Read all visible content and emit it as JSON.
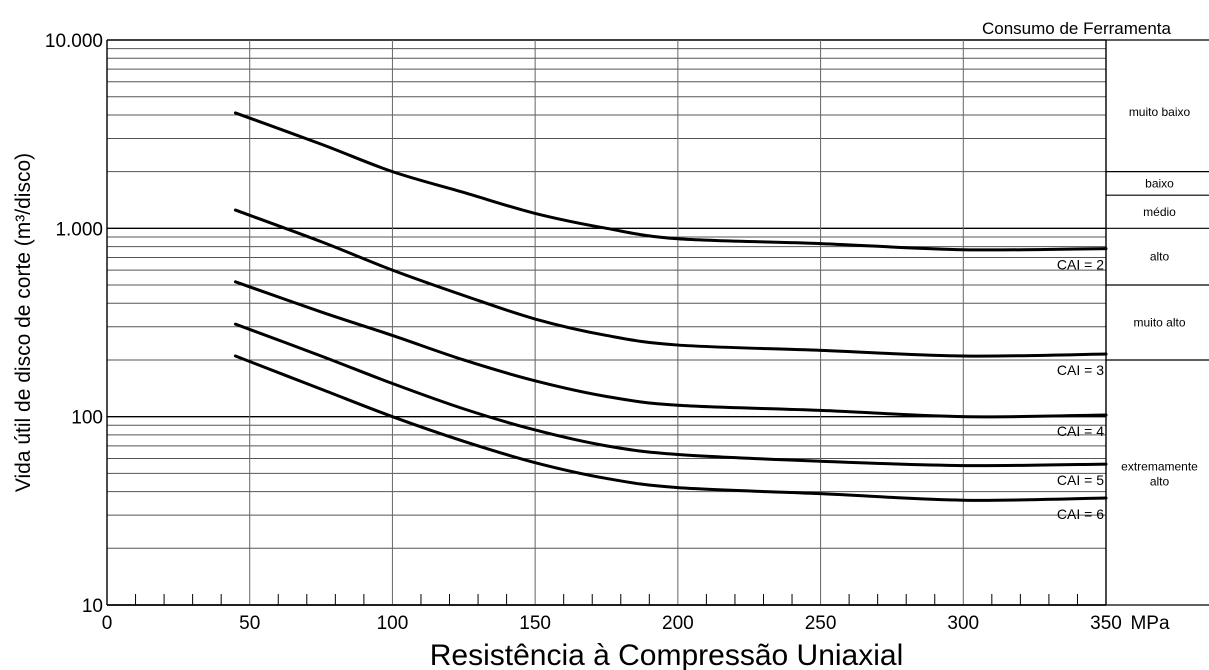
{
  "chart_data": {
    "type": "line",
    "title": "",
    "xlabel": "Resistência à Compressão Uniaxial",
    "x_unit": "MPa",
    "ylabel": "Vida útil de disco de corte (m³/disco)",
    "xlim": [
      0,
      350
    ],
    "ylim": [
      10,
      10000
    ],
    "y_scale": "log",
    "grid": true,
    "x_ticks": [
      0,
      50,
      100,
      150,
      200,
      250,
      300,
      350
    ],
    "x_tick_labels": [
      "0",
      "50",
      "100",
      "150",
      "200",
      "250",
      "300",
      "350"
    ],
    "y_ticks": [
      10,
      100,
      1000,
      10000
    ],
    "y_tick_labels": [
      "10",
      "100",
      "1.000",
      "10.000"
    ],
    "series": [
      {
        "name": "CAI = 2",
        "x": [
          45,
          75,
          100,
          125,
          150,
          175,
          200,
          250,
          300,
          350
        ],
        "values": [
          4100,
          2800,
          2000,
          1550,
          1200,
          1000,
          880,
          830,
          770,
          780
        ]
      },
      {
        "name": "CAI = 3",
        "x": [
          45,
          75,
          100,
          125,
          150,
          175,
          200,
          250,
          300,
          350
        ],
        "values": [
          1250,
          850,
          600,
          440,
          330,
          270,
          240,
          225,
          210,
          215
        ]
      },
      {
        "name": "CAI = 4",
        "x": [
          45,
          75,
          100,
          125,
          150,
          175,
          200,
          250,
          300,
          350
        ],
        "values": [
          520,
          360,
          270,
          200,
          155,
          128,
          115,
          108,
          100,
          102
        ]
      },
      {
        "name": "CAI = 5",
        "x": [
          45,
          75,
          100,
          125,
          150,
          175,
          200,
          250,
          300,
          350
        ],
        "values": [
          310,
          210,
          150,
          110,
          85,
          70,
          63,
          58,
          55,
          56
        ]
      },
      {
        "name": "CAI = 6",
        "x": [
          45,
          75,
          100,
          125,
          150,
          175,
          200,
          250,
          300,
          350
        ],
        "values": [
          210,
          140,
          100,
          74,
          57,
          47,
          42,
          39,
          36,
          37
        ]
      }
    ],
    "side_panel": {
      "title": "Consumo de Ferramenta",
      "zones": [
        {
          "label": "muito baixo",
          "y_min": 2000,
          "y_max": 10000
        },
        {
          "label": "baixo",
          "y_min": 1500,
          "y_max": 2000
        },
        {
          "label": "médio",
          "y_min": 1000,
          "y_max": 1500
        },
        {
          "label": "alto",
          "y_min": 500,
          "y_max": 1000
        },
        {
          "label": "muito alto",
          "y_min": 200,
          "y_max": 500
        },
        {
          "label": "extremamente alto",
          "y_min": 10,
          "y_max": 200
        }
      ]
    }
  }
}
